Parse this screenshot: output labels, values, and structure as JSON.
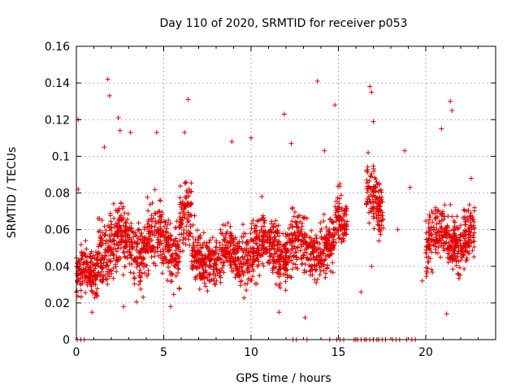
{
  "chart_data": {
    "type": "scatter",
    "title": "Day 110 of 2020, SRMTID for receiver p053",
    "xlabel": "GPS time / hours",
    "ylabel": "SRMTID / TECUs",
    "xlim": [
      0,
      24
    ],
    "ylim": [
      0,
      0.16
    ],
    "xticks": [
      0,
      5,
      10,
      15,
      20
    ],
    "xtick_labels": [
      "0",
      "5",
      "10",
      "15",
      "20"
    ],
    "yticks": [
      0,
      0.02,
      0.04,
      0.06,
      0.08,
      0.1,
      0.12,
      0.14,
      0.16
    ],
    "ytick_labels": [
      "0",
      "0.02",
      "0.04",
      "0.06",
      "0.08",
      "0.1",
      "0.12",
      "0.14",
      "0.16"
    ],
    "grid": true,
    "marker": "plus",
    "color": "#e00000",
    "segments": [
      {
        "start": 0.0,
        "end": 1.2,
        "center": 0.035,
        "spread": 0.012
      },
      {
        "start": 1.2,
        "end": 5.9,
        "center": 0.052,
        "spread": 0.016
      },
      {
        "start": 5.9,
        "end": 6.6,
        "center": 0.065,
        "spread": 0.018
      },
      {
        "start": 6.6,
        "end": 9.5,
        "center": 0.045,
        "spread": 0.012
      },
      {
        "start": 9.5,
        "end": 11.0,
        "center": 0.048,
        "spread": 0.015
      },
      {
        "start": 11.0,
        "end": 13.8,
        "center": 0.05,
        "spread": 0.015
      },
      {
        "start": 13.8,
        "end": 14.8,
        "center": 0.05,
        "spread": 0.014
      },
      {
        "start": 14.8,
        "end": 15.5,
        "center": 0.065,
        "spread": 0.012
      },
      {
        "start": 16.6,
        "end": 17.6,
        "center": 0.075,
        "spread": 0.015
      },
      {
        "start": 20.0,
        "end": 22.8,
        "center": 0.055,
        "spread": 0.014
      }
    ],
    "outliers": [
      [
        0.1,
        0.12
      ],
      [
        0.1,
        0.082
      ],
      [
        1.6,
        0.105
      ],
      [
        1.8,
        0.142
      ],
      [
        1.9,
        0.133
      ],
      [
        2.4,
        0.121
      ],
      [
        2.5,
        0.114
      ],
      [
        3.1,
        0.113
      ],
      [
        4.6,
        0.113
      ],
      [
        6.2,
        0.113
      ],
      [
        6.4,
        0.131
      ],
      [
        8.9,
        0.108
      ],
      [
        10.0,
        0.11
      ],
      [
        11.9,
        0.123
      ],
      [
        12.3,
        0.107
      ],
      [
        13.8,
        0.141
      ],
      [
        14.2,
        0.103
      ],
      [
        14.8,
        0.128
      ],
      [
        16.8,
        0.138
      ],
      [
        16.9,
        0.135
      ],
      [
        17.0,
        0.119
      ],
      [
        16.7,
        0.102
      ],
      [
        18.8,
        0.103
      ],
      [
        19.1,
        0.083
      ],
      [
        20.9,
        0.115
      ],
      [
        21.4,
        0.13
      ],
      [
        21.5,
        0.125
      ],
      [
        22.6,
        0.088
      ],
      [
        0.9,
        0.015
      ],
      [
        2.7,
        0.018
      ],
      [
        5.4,
        0.018
      ],
      [
        11.6,
        0.015
      ],
      [
        13.1,
        0.012
      ],
      [
        21.2,
        0.014
      ],
      [
        16.3,
        0.026
      ],
      [
        16.9,
        0.04
      ],
      [
        19.8,
        0.032
      ],
      [
        18.4,
        0.06
      ]
    ],
    "zeros": [
      0.05,
      0.25,
      0.45,
      12.4,
      12.6,
      13.2,
      14.5,
      14.9,
      15.1,
      15.3,
      15.9,
      16.0,
      16.1,
      16.3,
      16.5,
      16.6,
      16.8,
      17.0,
      17.2,
      17.3,
      17.5,
      17.7,
      18.1,
      18.3,
      18.5,
      18.9,
      19.2,
      19.4
    ]
  }
}
